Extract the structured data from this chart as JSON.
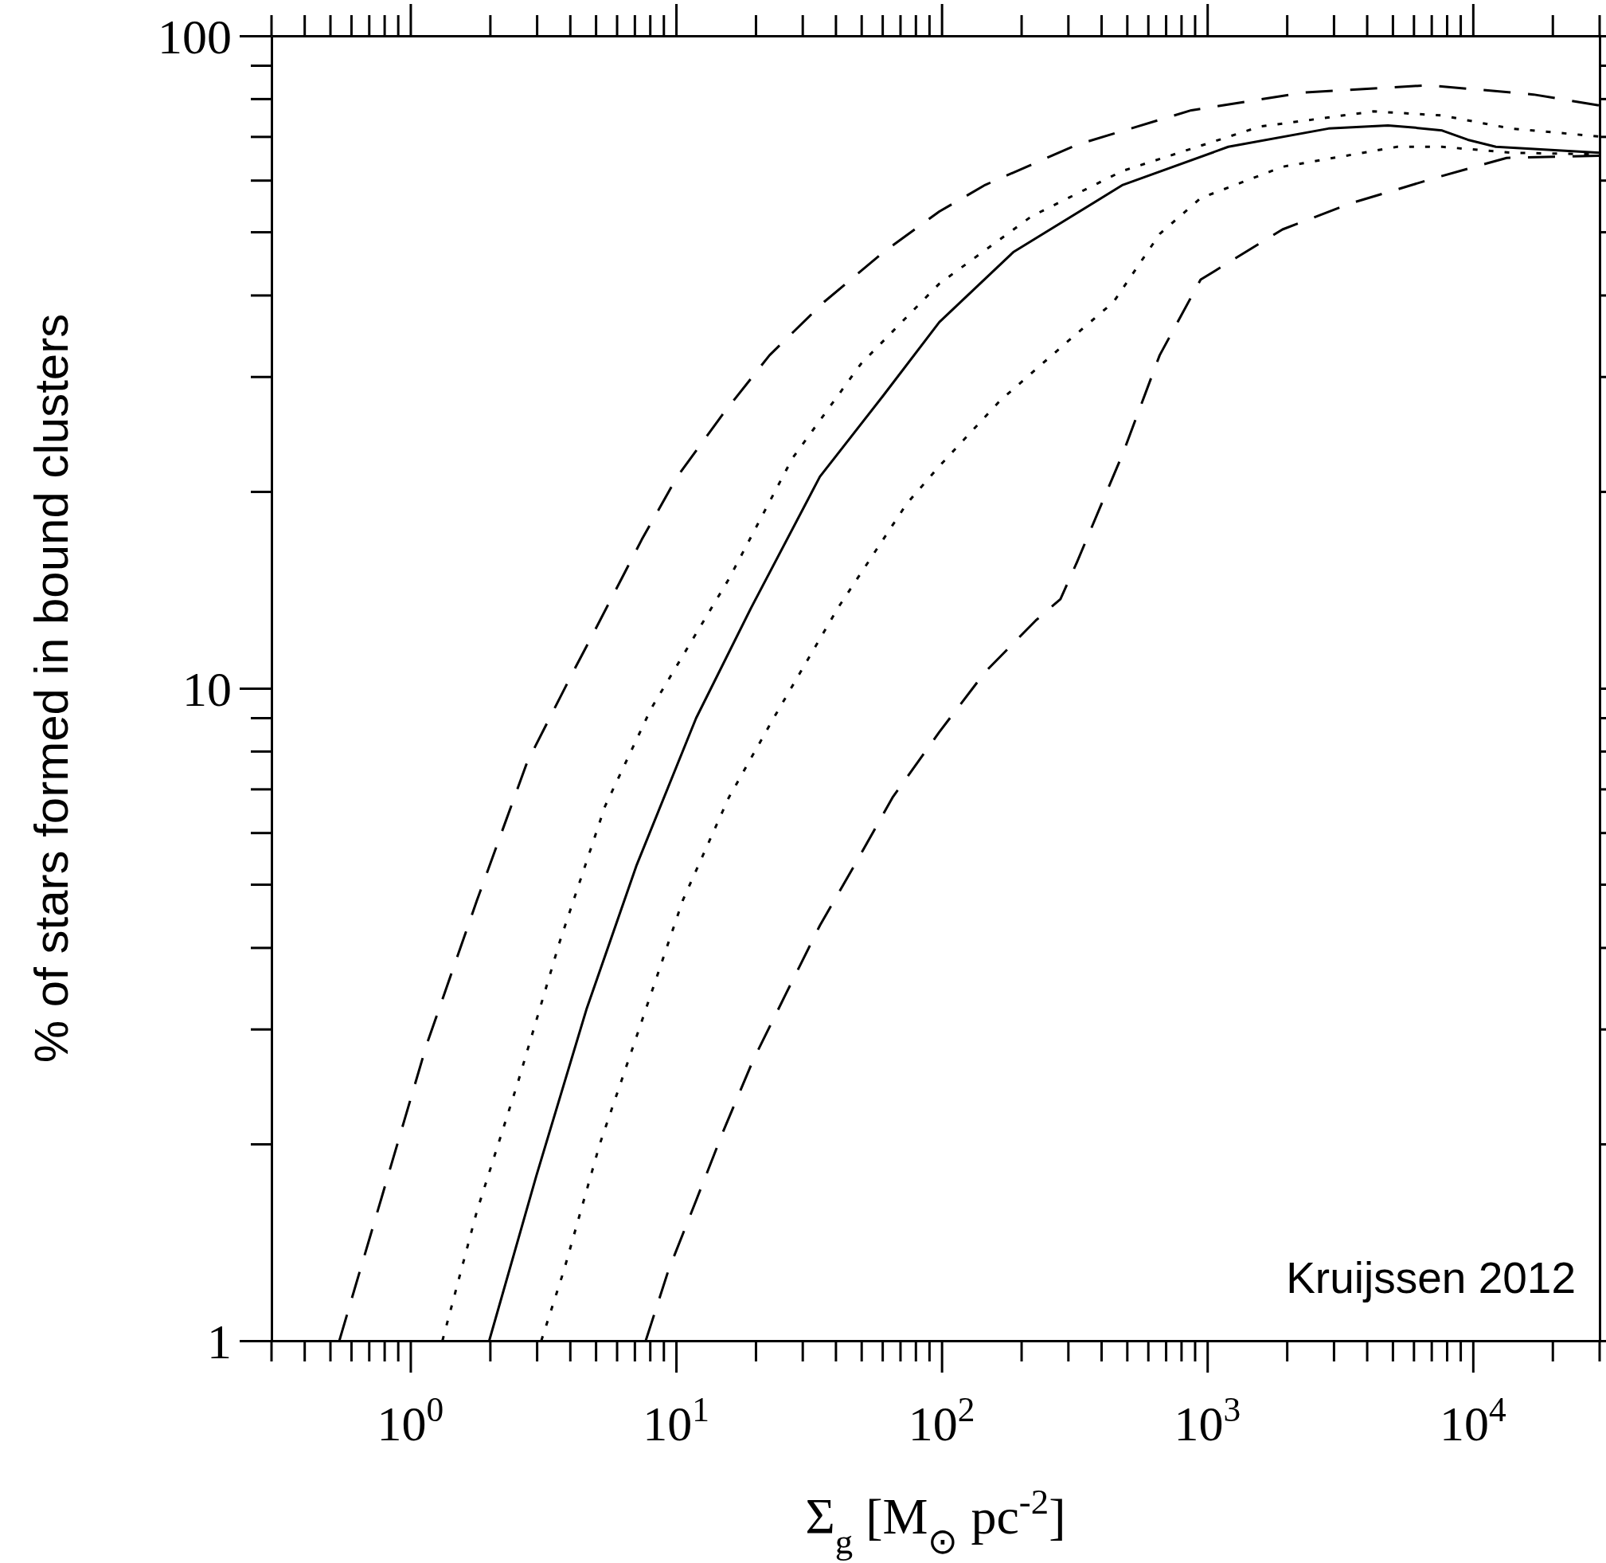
{
  "chart_data": {
    "type": "line",
    "xlabel": "Σ$_{g}$ [M$_{⊙}$ pc$^{-2}$]",
    "ylabel": "% of stars formed in bound clusters",
    "annotations": [
      "Kruijssen 2012"
    ],
    "log": "xy",
    "grid": false,
    "marker": "none",
    "xlim": [
      0.3,
      30000
    ],
    "ylim": [
      1,
      100
    ],
    "xticks": [
      {
        "value": 1,
        "label": "10$^{0}$"
      },
      {
        "value": 10,
        "label": "10$^{1}$"
      },
      {
        "value": 100,
        "label": "10$^{2}$"
      },
      {
        "value": 1000,
        "label": "10$^{3}$"
      },
      {
        "value": 10000,
        "label": "10$^{4}$"
      }
    ],
    "yticks": [
      1,
      10,
      100
    ],
    "series": [
      {
        "color": "#000000",
        "line_style": "dashed",
        "x": [
          0.54,
          0.78,
          1.15,
          1.78,
          2.75,
          4.1,
          4.81,
          7.43,
          10.1,
          15.1,
          22.5,
          36.1,
          60.3,
          98,
          146,
          323,
          871,
          2330,
          6830,
          16900,
          30000
        ],
        "values": [
          1,
          1.66,
          2.84,
          4.73,
          7.7,
          10.6,
          12,
          16.9,
          21.1,
          26.4,
          32.4,
          39.1,
          46.6,
          53.8,
          59.1,
          68.1,
          76.9,
          81.9,
          84,
          81.3,
          78.2
        ]
      },
      {
        "color": "#000000",
        "line_style": "dotted",
        "x": [
          1.32,
          1.78,
          2.54,
          3.65,
          5.4,
          8.05,
          11,
          15.8,
          27.4,
          49.6,
          98,
          218,
          481,
          1580,
          4230,
          7660,
          13900,
          30000
        ],
        "values": [
          1,
          1.58,
          2.49,
          4.09,
          6.59,
          9.3,
          11.5,
          14.7,
          22.5,
          31.4,
          41.7,
          52.9,
          62.1,
          72.6,
          76.6,
          75.5,
          72.1,
          70.1
        ]
      },
      {
        "color": "#000000",
        "line_style": "solid",
        "x": [
          1.98,
          2.98,
          4.6,
          7.11,
          11.9,
          19.2,
          34.8,
          60.3,
          98,
          186,
          481,
          1200,
          2860,
          4790,
          6080,
          7660,
          9570,
          12200,
          30000
        ],
        "values": [
          1,
          1.79,
          3.22,
          5.36,
          9,
          13.3,
          21.1,
          28.1,
          36.4,
          46.6,
          59.1,
          67.6,
          72.1,
          72.9,
          72.3,
          71.6,
          69.3,
          67.6,
          66.2
        ]
      },
      {
        "color": "#000000",
        "line_style": "dotted",
        "x": [
          3.11,
          3.78,
          5.16,
          7.11,
          10.6,
          15.8,
          23.3,
          40.8,
          74,
          98,
          166,
          298,
          444,
          662,
          944,
          1920,
          5190,
          7660,
          13900,
          30000
        ],
        "values": [
          1,
          1.28,
          2,
          2.93,
          4.73,
          6.8,
          9,
          13.3,
          19.2,
          21.9,
          27.6,
          34,
          39.1,
          49.7,
          56.4,
          63,
          67.6,
          67.6,
          66.2,
          65.8
        ]
      },
      {
        "color": "#000000",
        "line_style": "dashed",
        "x": [
          7.69,
          9.35,
          11.9,
          15.1,
          19.5,
          26,
          34.8,
          47.9,
          65.3,
          98,
          146,
          226,
          280,
          323,
          481,
          662,
          944,
          1920,
          3480,
          7660,
          13400,
          30000
        ],
        "values": [
          1,
          1.28,
          1.64,
          2.1,
          2.69,
          3.41,
          4.33,
          5.43,
          6.8,
          8.57,
          10.6,
          12.7,
          13.7,
          15.6,
          22.9,
          32.4,
          42.3,
          50.5,
          55.4,
          61,
          65,
          65.5
        ]
      }
    ]
  }
}
